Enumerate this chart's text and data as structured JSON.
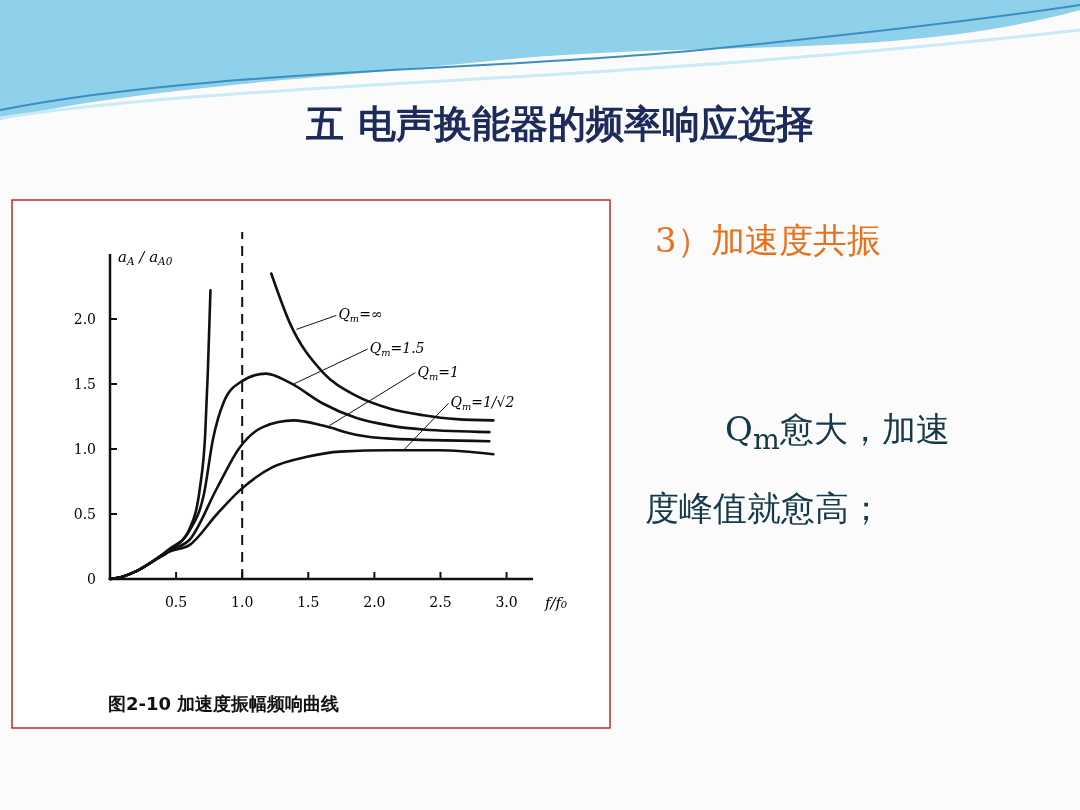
{
  "chart_data": {
    "type": "line",
    "title": "五 电声换能器的频率响应选择",
    "xlabel": "f/f₀",
    "ylabel": "a$_{A}$ / a$_{A0}$",
    "xlim": [
      0,
      3.2
    ],
    "ylim": [
      0,
      2.5
    ],
    "xticks": [
      0.5,
      {
        "value": 1,
        "label": "1.0"
      },
      1.5,
      {
        "value": 2,
        "label": "2.0"
      },
      2.5,
      {
        "value": 3,
        "label": "3.0"
      }
    ],
    "yticks": [
      0,
      0.5,
      {
        "value": 1,
        "label": "1.0"
      },
      1.5,
      {
        "value": 2,
        "label": "2.0"
      }
    ],
    "grid": false,
    "line_style": "solid",
    "marker": "none",
    "series": [
      {
        "color": "#111111",
        "x": [
          0,
          0.1,
          0.2,
          0.3,
          0.4,
          0.45,
          0.55,
          0.6,
          0.68,
          0.72,
          0.74,
          0.76,
          null,
          1.22,
          1.36,
          1.61,
          1.86,
          2.12,
          2.37,
          2.62,
          2.9
        ],
        "values": [
          0,
          0.02,
          0.06,
          0.12,
          0.19,
          0.23,
          0.3,
          0.38,
          0.7,
          1.11,
          1.59,
          2.22,
          null,
          2.35,
          1.97,
          1.59,
          1.41,
          1.31,
          1.26,
          1.23,
          1.22
        ]
      },
      {
        "color": "#111111",
        "x": [
          0,
          0.1,
          0.2,
          0.3,
          0.4,
          0.45,
          0.6,
          0.71,
          0.78,
          0.86,
          0.98,
          1.18,
          1.36,
          1.61,
          1.86,
          2.12,
          2.37,
          2.87
        ],
        "values": [
          0,
          0.02,
          0.06,
          0.12,
          0.19,
          0.23,
          0.37,
          0.65,
          1.08,
          1.36,
          1.51,
          1.58,
          1.51,
          1.35,
          1.24,
          1.18,
          1.15,
          1.13
        ]
      },
      {
        "color": "#111111",
        "x": [
          0,
          0.1,
          0.2,
          0.3,
          0.4,
          0.45,
          0.6,
          0.81,
          0.98,
          1.16,
          1.39,
          1.61,
          1.86,
          2.12,
          2.87
        ],
        "values": [
          0,
          0.02,
          0.06,
          0.12,
          0.19,
          0.22,
          0.3,
          0.7,
          1.01,
          1.17,
          1.22,
          1.18,
          1.11,
          1.08,
          1.06
        ]
      },
      {
        "color": "#111111",
        "x": [
          0,
          0.1,
          0.2,
          0.3,
          0.4,
          0.45,
          0.6,
          0.81,
          0.98,
          1.23,
          1.49,
          1.74,
          2.12,
          2.49,
          2.9
        ],
        "values": [
          0,
          0.02,
          0.06,
          0.12,
          0.18,
          0.21,
          0.26,
          0.5,
          0.68,
          0.86,
          0.94,
          0.98,
          0.99,
          0.99,
          0.96
        ]
      }
    ],
    "ref_lines": [
      {
        "axis": "x",
        "value": 1,
        "line_style": "dashed",
        "color": "#111111"
      }
    ],
    "annotations": [
      {
        "text": "Q$_{m}$=∞",
        "x": 1.41,
        "y": 1.92
      },
      {
        "text": "Q$_{m}$=1.5",
        "x": 1.39,
        "y": 1.5
      },
      {
        "text": "Q$_{m}$=1",
        "x": 1.66,
        "y": 1.18
      },
      {
        "text": "Q$_{m}$=1/√2",
        "x": 2.22,
        "y": 0.99
      },
      "图2-10 加速度振幅频响曲线",
      "3）加速度共振",
      "Q$_{m}$愈大，加速度峰值就愈高；"
    ]
  }
}
